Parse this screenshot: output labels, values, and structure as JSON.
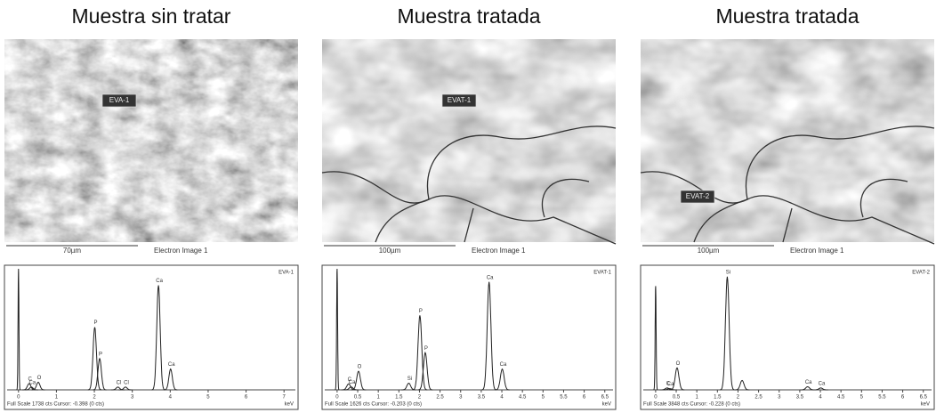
{
  "panels": [
    {
      "title": "Muestra sin tratar",
      "image_label": "EVA-1",
      "scale_bar": "70µm",
      "image_caption": "Electron Image 1",
      "spectrum": {
        "tag": "EVA-1",
        "footer": "Full Scale 1738 cts Cursor: -0.398 (0 cts)",
        "unit": "keV",
        "xlim": [
          -0.3,
          7.3
        ],
        "ylim": [
          0,
          1738
        ],
        "xticks": [
          0,
          1,
          2,
          3,
          4,
          5,
          6,
          7
        ],
        "peaks": [
          {
            "label": null,
            "x": 0,
            "counts": 1738
          },
          {
            "label": "C",
            "x": 0.28,
            "counts": 90
          },
          {
            "label": "Ca",
            "x": 0.34,
            "counts": 40
          },
          {
            "label": "O",
            "x": 0.52,
            "counts": 110
          },
          {
            "label": "P",
            "x": 2.01,
            "counts": 900
          },
          {
            "label": "P",
            "x": 2.14,
            "counts": 450
          },
          {
            "label": "Cl",
            "x": 2.62,
            "counts": 40
          },
          {
            "label": "Cl",
            "x": 2.82,
            "counts": 40
          },
          {
            "label": "Ca",
            "x": 3.69,
            "counts": 1500
          },
          {
            "label": "Ca",
            "x": 4.01,
            "counts": 300
          }
        ]
      }
    },
    {
      "title": "Muestra tratada",
      "image_label": "EVAT-1",
      "scale_bar": "100µm",
      "image_caption": "Electron Image 1",
      "spectrum": {
        "tag": "EVAT-1",
        "footer": "Full Scale 1626 cts Cursor: -0.203 (0 cts)",
        "unit": "keV",
        "xlim": [
          -0.3,
          6.7
        ],
        "ylim": [
          0,
          1626
        ],
        "xticks": [
          0,
          0.5,
          1,
          1.5,
          2,
          2.5,
          3,
          3.5,
          4,
          4.5,
          5,
          5.5,
          6,
          6.5
        ],
        "peaks": [
          {
            "label": null,
            "x": 0,
            "counts": 1626
          },
          {
            "label": "C",
            "x": 0.28,
            "counts": 80
          },
          {
            "label": "Ca",
            "x": 0.34,
            "counts": 40
          },
          {
            "label": "O",
            "x": 0.52,
            "counts": 250
          },
          {
            "label": "Si",
            "x": 1.74,
            "counts": 90
          },
          {
            "label": "P",
            "x": 2.01,
            "counts": 1000
          },
          {
            "label": "P",
            "x": 2.14,
            "counts": 500
          },
          {
            "label": "Ca",
            "x": 3.69,
            "counts": 1450
          },
          {
            "label": "Ca",
            "x": 4.01,
            "counts": 280
          }
        ]
      }
    },
    {
      "title": "Muestra tratada",
      "image_label": "EVAT-2",
      "scale_bar": "100µm",
      "image_caption": "Electron Image 1",
      "spectrum": {
        "tag": "EVAT-2",
        "footer": "Full Scale 3848 cts Cursor: -0.228 (0 cts)",
        "unit": "keV",
        "xlim": [
          -0.3,
          6.7
        ],
        "ylim": [
          0,
          3848
        ],
        "xticks": [
          0,
          0.5,
          1,
          1.5,
          2,
          2.5,
          3,
          3.5,
          4,
          4.5,
          5,
          5.5,
          6,
          6.5
        ],
        "peaks": [
          {
            "label": null,
            "x": 0,
            "counts": 3300
          },
          {
            "label": "C",
            "x": 0.28,
            "counts": 60
          },
          {
            "label": "Ca",
            "x": 0.34,
            "counts": 40
          },
          {
            "label": "O",
            "x": 0.52,
            "counts": 700
          },
          {
            "label": "Si",
            "x": 1.74,
            "counts": 3600
          },
          {
            "label": null,
            "x": 2.1,
            "counts": 300
          },
          {
            "label": "Ca",
            "x": 3.69,
            "counts": 100
          },
          {
            "label": "Ca",
            "x": 4.01,
            "counts": 60
          }
        ]
      }
    }
  ]
}
